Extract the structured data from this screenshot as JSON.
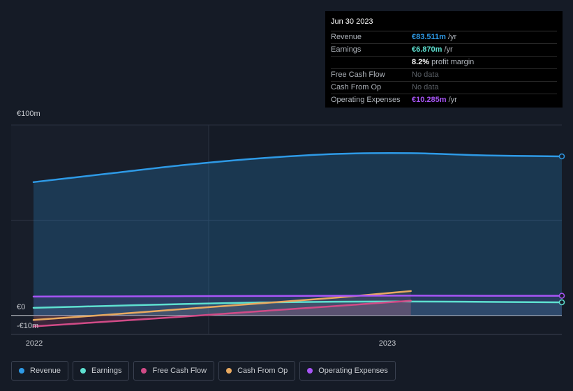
{
  "tooltip": {
    "date": "Jun 30 2023",
    "rows": [
      {
        "label": "Revenue",
        "value": "€83.511m",
        "unit": " /yr",
        "color": "#2e9ae6"
      },
      {
        "label": "Earnings",
        "value": "€6.870m",
        "unit": " /yr",
        "color": "#5ee0d0"
      },
      {
        "label": "",
        "value": "8.2%",
        "unit": " profit margin",
        "color": "#ffffff"
      },
      {
        "label": "Free Cash Flow",
        "value": "No data",
        "unit": "",
        "color": "#5c6168"
      },
      {
        "label": "Cash From Op",
        "value": "No data",
        "unit": "",
        "color": "#5c6168"
      },
      {
        "label": "Operating Expenses",
        "value": "€10.285m",
        "unit": " /yr",
        "color": "#a855f7"
      }
    ]
  },
  "legend": [
    {
      "label": "Revenue",
      "color": "#2e9ae6"
    },
    {
      "label": "Earnings",
      "color": "#5ee0d0"
    },
    {
      "label": "Free Cash Flow",
      "color": "#d14b87"
    },
    {
      "label": "Cash From Op",
      "color": "#e8a960"
    },
    {
      "label": "Operating Expenses",
      "color": "#a855f7"
    }
  ],
  "chart_data": {
    "type": "area",
    "y_tick_labels": [
      "€100m",
      "€0",
      "-€10m"
    ],
    "x_tick_labels": [
      "2022",
      "2023"
    ],
    "ylim": [
      -10,
      100
    ],
    "x": [
      2021.75,
      2022.0,
      2022.25,
      2022.5,
      2022.75,
      2023.0,
      2023.25,
      2023.5
    ],
    "series": [
      {
        "name": "Revenue",
        "color": "#2e9ae6",
        "values": [
          70.0,
          74.5,
          79.0,
          82.5,
          84.8,
          85.2,
          84.0,
          83.511
        ]
      },
      {
        "name": "Earnings",
        "color": "#5ee0d0",
        "values": [
          4.0,
          5.0,
          6.0,
          6.8,
          7.2,
          7.3,
          7.1,
          6.87
        ]
      },
      {
        "name": "Free Cash Flow",
        "color": "#d14b87",
        "values": [
          -5.8,
          -3.2,
          -0.6,
          2.2,
          4.9,
          7.7,
          null,
          null
        ]
      },
      {
        "name": "Cash From Op",
        "color": "#e8a960",
        "values": [
          -2.4,
          0.4,
          3.4,
          6.3,
          9.3,
          12.8,
          null,
          null
        ]
      },
      {
        "name": "Operating Expenses",
        "color": "#a855f7",
        "values": [
          9.9,
          10.0,
          10.1,
          10.2,
          10.3,
          10.4,
          10.3,
          10.285
        ]
      }
    ]
  }
}
